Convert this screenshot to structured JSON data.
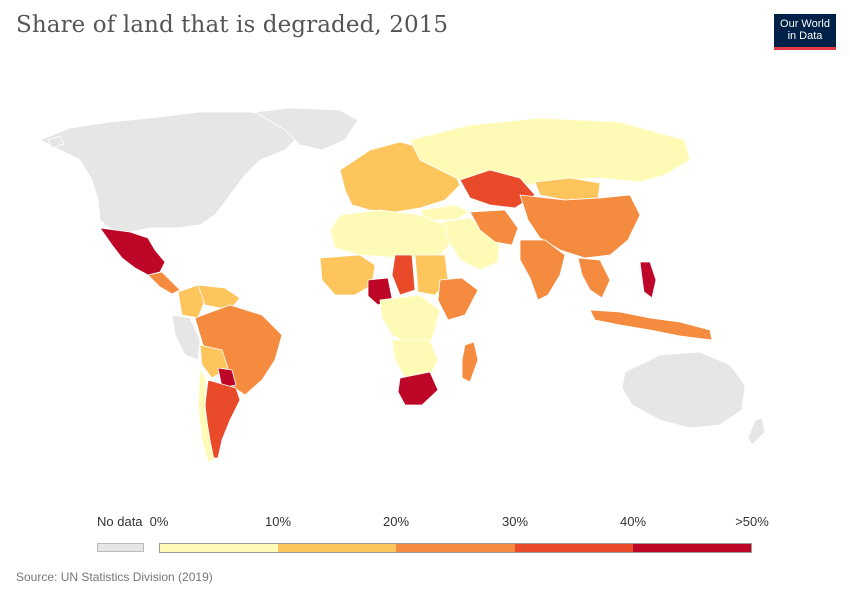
{
  "title": "Share of land that is degraded, 2015",
  "logo": {
    "line1": "Our World",
    "line2": "in Data"
  },
  "legend": {
    "no_data_label": "No data",
    "ticks": [
      "0%",
      "10%",
      "20%",
      "30%",
      "40%",
      ">50%"
    ],
    "colors": [
      "#fffbb6",
      "#fec55c",
      "#f58b3f",
      "#e84a2a",
      "#be0628"
    ],
    "no_data_color": "#e6e6e6"
  },
  "source": "Source: UN Statistics Division (2019)",
  "regions": [
    {
      "name": "North America (north)",
      "bin": "nodata"
    },
    {
      "name": "Greenland",
      "bin": "nodata"
    },
    {
      "name": "Mexico",
      "bin": 4
    },
    {
      "name": "Central America",
      "bin": 2
    },
    {
      "name": "Colombia",
      "bin": 1
    },
    {
      "name": "Venezuela",
      "bin": 1
    },
    {
      "name": "Brazil",
      "bin": 2
    },
    {
      "name": "Peru",
      "bin": "nodata"
    },
    {
      "name": "Bolivia",
      "bin": 1
    },
    {
      "name": "Paraguay",
      "bin": 4
    },
    {
      "name": "Argentina",
      "bin": 3
    },
    {
      "name": "Chile",
      "bin": 0
    },
    {
      "name": "Russia",
      "bin": 0
    },
    {
      "name": "Kazakhstan",
      "bin": 3
    },
    {
      "name": "Mongolia",
      "bin": 1
    },
    {
      "name": "China",
      "bin": 2
    },
    {
      "name": "India",
      "bin": 2
    },
    {
      "name": "Southeast Asia",
      "bin": 2
    },
    {
      "name": "Philippines",
      "bin": 4
    },
    {
      "name": "Indonesia",
      "bin": 2
    },
    {
      "name": "Australia",
      "bin": "nodata"
    },
    {
      "name": "Europe",
      "bin": 1
    },
    {
      "name": "North Africa",
      "bin": 0
    },
    {
      "name": "West Africa",
      "bin": 1
    },
    {
      "name": "Nigeria",
      "bin": 4
    },
    {
      "name": "Sudan",
      "bin": 1
    },
    {
      "name": "Chad",
      "bin": 3
    },
    {
      "name": "Horn of Africa",
      "bin": 2
    },
    {
      "name": "Central Africa",
      "bin": 0
    },
    {
      "name": "Southern Africa",
      "bin": 0
    },
    {
      "name": "South Africa",
      "bin": 4
    },
    {
      "name": "Madagascar",
      "bin": 2
    },
    {
      "name": "Middle East",
      "bin": 0
    },
    {
      "name": "Iran",
      "bin": 2
    },
    {
      "name": "Turkey",
      "bin": 0
    },
    {
      "name": "Greenland-small",
      "bin": "nodata"
    },
    {
      "name": "New Zealand",
      "bin": "nodata"
    }
  ]
}
